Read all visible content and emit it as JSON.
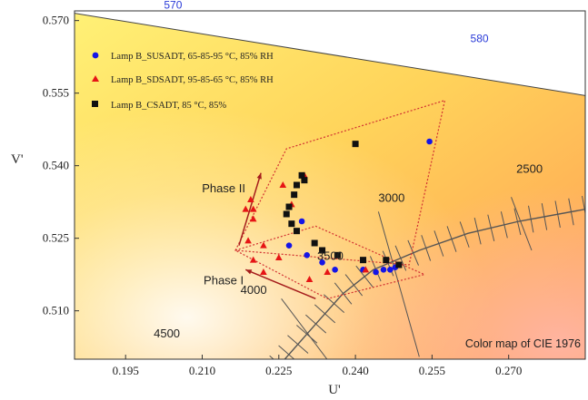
{
  "chart_data": {
    "type": "scatter",
    "title": "",
    "xlabel": "U'",
    "ylabel": "V'",
    "xlim": [
      0.185,
      0.285
    ],
    "ylim": [
      0.5,
      0.572
    ],
    "x_ticks": [
      "0.195",
      "0.210",
      "0.225",
      "0.240",
      "0.255",
      "0.270"
    ],
    "y_ticks": [
      "0.510",
      "0.525",
      "0.540",
      "0.555",
      "0.570"
    ],
    "grid": false,
    "legend_position": "top-left",
    "background": "CIE 1976 color map gradient (yellow to orange)",
    "annotation": "Color map of CIE 1976",
    "spectral_labels": [
      {
        "label": "570",
        "u": 0.2025,
        "v": 0.5725
      },
      {
        "label": "580",
        "u": 0.2625,
        "v": 0.5655
      }
    ],
    "spectral_locus": [
      [
        0.185,
        0.5715
      ],
      [
        0.285,
        0.5545
      ]
    ],
    "cct_labels": [
      {
        "label": "2500",
        "u": 0.2715,
        "v": 0.5385
      },
      {
        "label": "3000",
        "u": 0.2445,
        "v": 0.5325
      },
      {
        "label": "3500",
        "u": 0.2325,
        "v": 0.5205
      },
      {
        "label": "4000",
        "u": 0.2175,
        "v": 0.5135
      },
      {
        "label": "4500",
        "u": 0.2005,
        "v": 0.5045
      }
    ],
    "planckian_locus": [
      [
        0.2245,
        0.498
      ],
      [
        0.232,
        0.507
      ],
      [
        0.2375,
        0.5135
      ],
      [
        0.2435,
        0.5185
      ],
      [
        0.2525,
        0.5225
      ],
      [
        0.262,
        0.526
      ],
      [
        0.272,
        0.5285
      ],
      [
        0.285,
        0.531
      ]
    ],
    "phase_labels": [
      {
        "label": "Phase II",
        "u": 0.2142,
        "v": 0.5345
      },
      {
        "label": "Phase I",
        "u": 0.2142,
        "v": 0.5155
      }
    ],
    "phase_arrows": [
      {
        "from": [
          0.2172,
          0.5235
        ],
        "to": [
          0.2215,
          0.5385
        ]
      },
      {
        "from": [
          0.2322,
          0.5125
        ],
        "to": [
          0.2185,
          0.5185
        ]
      }
    ],
    "regions": [
      {
        "name": "Phase II",
        "points": [
          [
            0.2165,
            0.5225
          ],
          [
            0.2265,
            0.5435
          ],
          [
            0.2575,
            0.5535
          ],
          [
            0.2505,
            0.5195
          ]
        ]
      },
      {
        "name": "Phase I",
        "points": [
          [
            0.2165,
            0.5225
          ],
          [
            0.2322,
            0.5275
          ],
          [
            0.2535,
            0.5175
          ],
          [
            0.2345,
            0.5125
          ]
        ]
      }
    ],
    "series": [
      {
        "name": "Lamp B_SUSADT, 65-85-95 °C, 85% RH",
        "marker": "circle",
        "color": "#1515e6",
        "points": [
          [
            0.2295,
            0.5285
          ],
          [
            0.227,
            0.5235
          ],
          [
            0.2305,
            0.5215
          ],
          [
            0.2335,
            0.52
          ],
          [
            0.236,
            0.5185
          ],
          [
            0.2415,
            0.5185
          ],
          [
            0.244,
            0.518
          ],
          [
            0.2455,
            0.5185
          ],
          [
            0.2468,
            0.5185
          ],
          [
            0.2478,
            0.519
          ],
          [
            0.2545,
            0.545
          ]
        ]
      },
      {
        "name": "Lamp B_SDSADT, 95-85-65 °C,  85% RH",
        "marker": "triangle",
        "color": "#e61515",
        "points": [
          [
            0.2185,
            0.531
          ],
          [
            0.2195,
            0.533
          ],
          [
            0.22,
            0.531
          ],
          [
            0.219,
            0.5245
          ],
          [
            0.222,
            0.5235
          ],
          [
            0.22,
            0.529
          ],
          [
            0.22,
            0.5205
          ],
          [
            0.222,
            0.518
          ],
          [
            0.225,
            0.521
          ],
          [
            0.2258,
            0.536
          ],
          [
            0.2275,
            0.532
          ],
          [
            0.23,
            0.538
          ],
          [
            0.231,
            0.5165
          ],
          [
            0.2345,
            0.518
          ],
          [
            0.242,
            0.5185
          ]
        ]
      },
      {
        "name": "Lamp B_CSADT, 85 °C, 85%",
        "marker": "square",
        "color": "#111111",
        "points": [
          [
            0.2265,
            0.53
          ],
          [
            0.2275,
            0.528
          ],
          [
            0.2285,
            0.5265
          ],
          [
            0.227,
            0.5315
          ],
          [
            0.228,
            0.534
          ],
          [
            0.2285,
            0.536
          ],
          [
            0.2295,
            0.538
          ],
          [
            0.23,
            0.537
          ],
          [
            0.232,
            0.524
          ],
          [
            0.2335,
            0.5225
          ],
          [
            0.2365,
            0.5215
          ],
          [
            0.24,
            0.5445
          ],
          [
            0.2415,
            0.5205
          ],
          [
            0.246,
            0.5205
          ],
          [
            0.2485,
            0.5195
          ]
        ]
      }
    ]
  }
}
